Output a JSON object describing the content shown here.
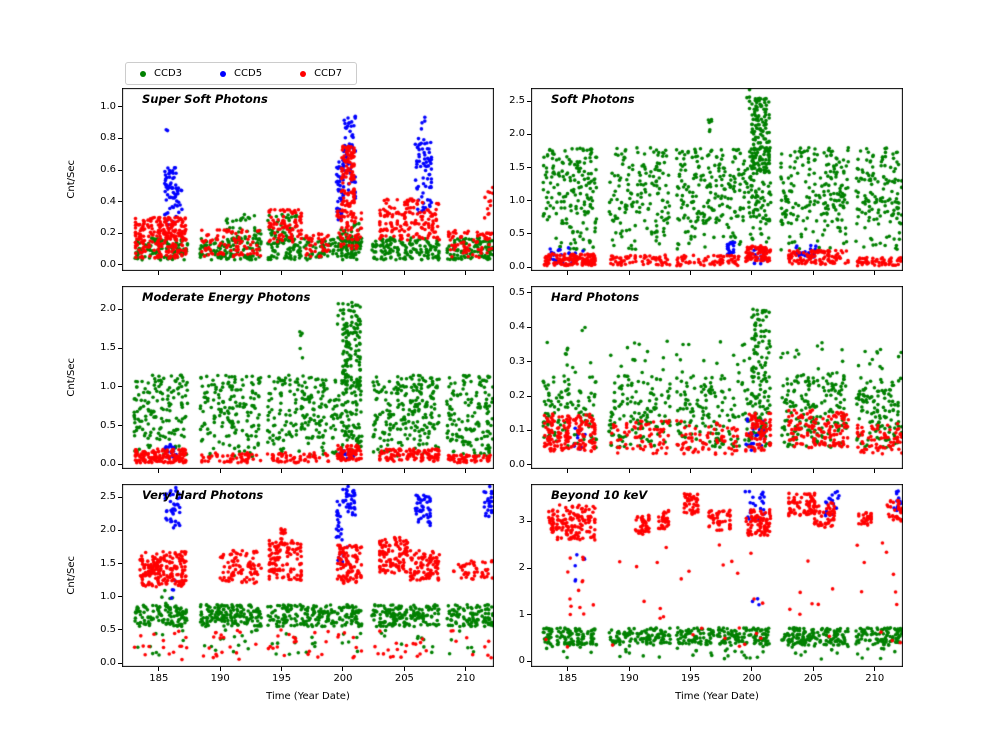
{
  "legend": {
    "items": [
      {
        "label": "CCD3",
        "color": "#008000"
      },
      {
        "label": "CCD5",
        "color": "#0000ff"
      },
      {
        "label": "CCD7",
        "color": "#ff0000"
      }
    ]
  },
  "chart_data": {
    "type": "scatter",
    "xlabel": "Time (Year Date)",
    "ylabel": "Cnt/Sec",
    "xlim": [
      182.0,
      212.3
    ],
    "xticks": [
      {
        "v": 185,
        "label": "185"
      },
      {
        "v": 190,
        "label": "190"
      },
      {
        "v": 195,
        "label": "195"
      },
      {
        "v": 200,
        "label": "200"
      },
      {
        "v": 205,
        "label": "205"
      },
      {
        "v": 210,
        "label": "210"
      }
    ],
    "series_names": [
      "CCD3",
      "CCD5",
      "CCD7"
    ],
    "colors": {
      "CCD3": "#008000",
      "CCD5": "#0000ff",
      "CCD7": "#ff0000"
    },
    "burst_centers": [
      183.2,
      183.7,
      184.3,
      184.8,
      185.2,
      185.7,
      186.2,
      186.7,
      187.1,
      188.6,
      189.1,
      189.6,
      190.1,
      190.6,
      191.1,
      191.6,
      192.1,
      192.6,
      193.1,
      194.1,
      194.6,
      195.1,
      195.6,
      196.1,
      196.6,
      197.1,
      197.6,
      198.2,
      198.7,
      199.2,
      199.7,
      200.1,
      200.5,
      200.9,
      201.3,
      202.6,
      203.1,
      203.6,
      204.1,
      204.6,
      205.1,
      205.6,
      206.1,
      206.6,
      207.1,
      207.6,
      208.7,
      209.2,
      209.7,
      210.2,
      210.7,
      211.2,
      211.7,
      212.0
    ],
    "panels": [
      {
        "title": "Super Soft Photons",
        "ylim": [
          -0.04,
          1.12
        ],
        "yticks": [
          {
            "v": 0.0,
            "label": "0.0"
          },
          {
            "v": 0.2,
            "label": "0.2"
          },
          {
            "v": 0.4,
            "label": "0.4"
          },
          {
            "v": 0.6,
            "label": "0.6"
          },
          {
            "v": 0.8,
            "label": "0.8"
          },
          {
            "v": 1.0,
            "label": "1.0"
          }
        ],
        "show_xticklabels": false,
        "clusters": {
          "CCD3": [
            [
              183,
              212.2,
              0.03,
              0.17,
              650
            ],
            [
              190.5,
              196.2,
              0.12,
              0.32,
              90
            ],
            [
              199.6,
              201.4,
              0.08,
              0.28,
              40
            ]
          ],
          "CCD5": [
            [
              185.3,
              186.4,
              0.25,
              0.62,
              55
            ],
            [
              185.5,
              185.9,
              0.8,
              0.88,
              2
            ],
            [
              186.4,
              186.9,
              0.33,
              0.5,
              12
            ],
            [
              199.3,
              199.9,
              0.28,
              0.66,
              35
            ],
            [
              200.0,
              201.0,
              0.42,
              0.97,
              70
            ],
            [
              205.8,
              207.2,
              0.33,
              0.8,
              70
            ],
            [
              206.2,
              206.7,
              0.86,
              0.97,
              4
            ]
          ],
          "CCD7": [
            [
              183.1,
              187.2,
              0.12,
              0.3,
              180
            ],
            [
              183.1,
              187.2,
              0.04,
              0.12,
              60
            ],
            [
              188.5,
              193.5,
              0.05,
              0.22,
              90
            ],
            [
              194.0,
              196.6,
              0.14,
              0.35,
              90
            ],
            [
              197.0,
              198.8,
              0.05,
              0.2,
              40
            ],
            [
              199.8,
              200.9,
              0.35,
              0.75,
              110
            ],
            [
              199.5,
              201.5,
              0.1,
              0.35,
              70
            ],
            [
              203.0,
              208.0,
              0.15,
              0.42,
              160
            ],
            [
              208.6,
              212.2,
              0.04,
              0.22,
              70
            ],
            [
              211.4,
              212.2,
              0.28,
              0.5,
              12
            ]
          ]
        }
      },
      {
        "title": "Soft Photons",
        "ylim": [
          -0.06,
          2.7
        ],
        "yticks": [
          {
            "v": 0.0,
            "label": "0.0"
          },
          {
            "v": 0.5,
            "label": "0.5"
          },
          {
            "v": 1.0,
            "label": "1.0"
          },
          {
            "v": 1.5,
            "label": "1.5"
          },
          {
            "v": 2.0,
            "label": "2.0"
          },
          {
            "v": 2.5,
            "label": "2.5"
          }
        ],
        "show_xticklabels": false,
        "clusters": {
          "CCD3": [
            [
              183,
              212.2,
              0.65,
              1.8,
              850
            ],
            [
              183,
              212.2,
              0.25,
              0.65,
              130
            ],
            [
              200.0,
              201.4,
              1.4,
              2.55,
              140
            ],
            [
              196.3,
              196.7,
              1.9,
              2.25,
              6
            ],
            [
              199.5,
              199.8,
              2.3,
              2.68,
              5
            ]
          ],
          "CCD5": [
            [
              183.4,
              186.6,
              0.05,
              0.3,
              25
            ],
            [
              198.0,
              199.0,
              0.18,
              0.38,
              22
            ],
            [
              203.6,
              205.2,
              0.15,
              0.35,
              28
            ],
            [
              200.0,
              201.0,
              0.05,
              0.28,
              15
            ]
          ],
          "CCD7": [
            [
              183.1,
              187.2,
              0.02,
              0.2,
              140
            ],
            [
              188.5,
              199.0,
              0.02,
              0.18,
              130
            ],
            [
              199.5,
              201.5,
              0.08,
              0.32,
              80
            ],
            [
              203.0,
              208.0,
              0.04,
              0.25,
              110
            ],
            [
              208.6,
              212.2,
              0.02,
              0.15,
              60
            ]
          ]
        }
      },
      {
        "title": "Moderate Energy Photons",
        "ylim": [
          -0.06,
          2.3
        ],
        "yticks": [
          {
            "v": 0.0,
            "label": "0.0"
          },
          {
            "v": 0.5,
            "label": "0.5"
          },
          {
            "v": 1.0,
            "label": "1.0"
          },
          {
            "v": 1.5,
            "label": "1.5"
          },
          {
            "v": 2.0,
            "label": "2.0"
          }
        ],
        "show_xticklabels": false,
        "clusters": {
          "CCD3": [
            [
              183,
              212.2,
              0.3,
              1.15,
              850
            ],
            [
              183,
              212.2,
              0.1,
              0.3,
              110
            ],
            [
              200.0,
              201.4,
              0.9,
              2.1,
              130
            ],
            [
              196.3,
              196.7,
              1.3,
              1.8,
              5
            ],
            [
              199.5,
              199.8,
              1.8,
              2.2,
              4
            ]
          ],
          "CCD5": [
            [
              185.4,
              186.6,
              0.08,
              0.28,
              18
            ],
            [
              199.5,
              201.0,
              0.05,
              0.2,
              12
            ]
          ],
          "CCD7": [
            [
              183.1,
              187.2,
              0.02,
              0.2,
              140
            ],
            [
              188.5,
              198.8,
              0.02,
              0.15,
              110
            ],
            [
              199.5,
              201.5,
              0.05,
              0.25,
              70
            ],
            [
              203.0,
              208.0,
              0.04,
              0.2,
              110
            ],
            [
              208.6,
              212.2,
              0.02,
              0.12,
              60
            ]
          ]
        }
      },
      {
        "title": "Hard Photons",
        "ylim": [
          -0.012,
          0.52
        ],
        "yticks": [
          {
            "v": 0.0,
            "label": "0.0"
          },
          {
            "v": 0.1,
            "label": "0.1"
          },
          {
            "v": 0.2,
            "label": "0.2"
          },
          {
            "v": 0.3,
            "label": "0.3"
          },
          {
            "v": 0.4,
            "label": "0.4"
          },
          {
            "v": 0.5,
            "label": "0.5"
          }
        ],
        "show_xticklabels": false,
        "clusters": {
          "CCD3": [
            [
              183,
              212.2,
              0.05,
              0.26,
              750
            ],
            [
              183,
              212.2,
              0.26,
              0.36,
              70
            ],
            [
              200.0,
              201.4,
              0.25,
              0.46,
              60
            ],
            [
              186.0,
              186.4,
              0.38,
              0.42,
              2
            ]
          ],
          "CCD5": [
            [
              185.5,
              186.5,
              0.04,
              0.12,
              10
            ],
            [
              199.5,
              201.0,
              0.04,
              0.14,
              20
            ]
          ],
          "CCD7": [
            [
              183.1,
              187.2,
              0.04,
              0.15,
              170
            ],
            [
              188.5,
              198.8,
              0.03,
              0.13,
              140
            ],
            [
              199.5,
              201.5,
              0.04,
              0.15,
              80
            ],
            [
              203.0,
              208.0,
              0.05,
              0.16,
              140
            ],
            [
              208.6,
              212.2,
              0.03,
              0.12,
              70
            ]
          ]
        }
      },
      {
        "title": "Very Hard Photons",
        "ylim": [
          -0.06,
          2.7
        ],
        "yticks": [
          {
            "v": 0.0,
            "label": "0.0"
          },
          {
            "v": 0.5,
            "label": "0.5"
          },
          {
            "v": 1.0,
            "label": "1.0"
          },
          {
            "v": 1.5,
            "label": "1.5"
          },
          {
            "v": 2.0,
            "label": "2.0"
          },
          {
            "v": 2.5,
            "label": "2.5"
          }
        ],
        "show_xticklabels": true,
        "clusters": {
          "CCD3": [
            [
              183,
              212.2,
              0.55,
              0.88,
              750
            ],
            [
              183,
              212.2,
              0.1,
              0.5,
              60
            ],
            [
              185.0,
              186.2,
              0.9,
              1.1,
              5
            ]
          ],
          "CCD5": [
            [
              185.5,
              186.7,
              2.0,
              2.65,
              40
            ],
            [
              185.8,
              186.3,
              0.95,
              1.25,
              4
            ],
            [
              199.3,
              200.0,
              1.85,
              2.45,
              22
            ],
            [
              200.0,
              201.0,
              2.2,
              2.68,
              35
            ],
            [
              199.6,
              200.4,
              1.25,
              1.8,
              6
            ],
            [
              205.9,
              207.1,
              2.05,
              2.55,
              45
            ],
            [
              211.3,
              212.1,
              2.2,
              2.68,
              22
            ]
          ],
          "CCD7": [
            [
              183.4,
              187.2,
              1.15,
              1.68,
              190
            ],
            [
              190.0,
              193.4,
              1.2,
              1.7,
              90
            ],
            [
              194.0,
              196.6,
              1.25,
              1.85,
              110
            ],
            [
              194.9,
              195.3,
              1.8,
              2.05,
              12
            ],
            [
              199.5,
              201.5,
              1.2,
              1.78,
              100
            ],
            [
              203.0,
              205.5,
              1.35,
              1.9,
              110
            ],
            [
              205.5,
              208.0,
              1.25,
              1.7,
              90
            ],
            [
              209.0,
              212.2,
              1.25,
              1.55,
              45
            ],
            [
              183,
              212.2,
              0.05,
              0.5,
              90
            ]
          ]
        }
      },
      {
        "title": "Beyond 10 keV",
        "ylim": [
          -0.12,
          3.8
        ],
        "yticks": [
          {
            "v": 0,
            "label": "0"
          },
          {
            "v": 1,
            "label": "1"
          },
          {
            "v": 2,
            "label": "2"
          },
          {
            "v": 3,
            "label": "3"
          }
        ],
        "show_xticklabels": true,
        "clusters": {
          "CCD3": [
            [
              183,
              212.2,
              0.35,
              0.72,
              650
            ],
            [
              183,
              212.2,
              0.05,
              0.35,
              50
            ]
          ],
          "CCD5": [
            [
              185.6,
              186.5,
              1.4,
              2.6,
              6
            ],
            [
              199.4,
              201.0,
              3.0,
              3.65,
              22
            ],
            [
              206.0,
              207.1,
              3.1,
              3.65,
              18
            ],
            [
              211.3,
              212.1,
              3.2,
              3.68,
              14
            ],
            [
              199.8,
              200.6,
              1.2,
              1.5,
              3
            ]
          ],
          "CCD7": [
            [
              183.4,
              187.2,
              2.6,
              3.35,
              140
            ],
            [
              185.0,
              186.6,
              1.0,
              2.5,
              10
            ],
            [
              190.5,
              191.6,
              2.7,
              3.15,
              40
            ],
            [
              192.4,
              193.2,
              2.8,
              3.25,
              30
            ],
            [
              194.4,
              195.6,
              3.15,
              3.6,
              45
            ],
            [
              196.5,
              198.2,
              2.8,
              3.25,
              50
            ],
            [
              199.5,
              201.5,
              2.7,
              3.25,
              80
            ],
            [
              203.0,
              205.1,
              3.1,
              3.6,
              80
            ],
            [
              205.1,
              206.7,
              2.85,
              3.4,
              50
            ],
            [
              208.7,
              209.7,
              2.9,
              3.2,
              30
            ],
            [
              211.0,
              212.2,
              3.0,
              3.45,
              30
            ],
            [
              183,
              212.2,
              0.3,
              2.6,
              50
            ]
          ]
        }
      }
    ]
  }
}
